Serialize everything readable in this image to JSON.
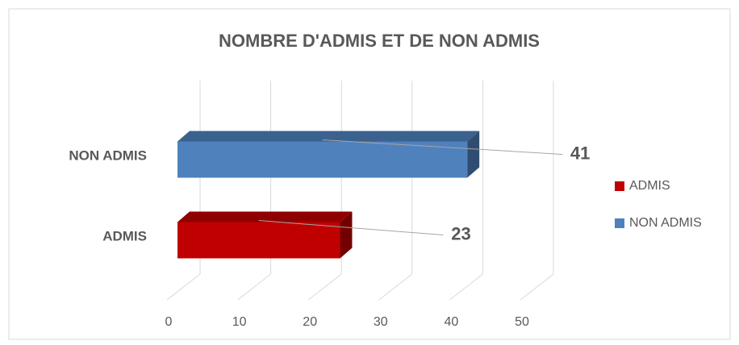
{
  "chart_data": {
    "type": "bar3d",
    "orientation": "horizontal",
    "title": "NOMBRE D'ADMIS ET DE NON ADMIS",
    "categories": [
      "ADMIS",
      "NON ADMIS"
    ],
    "values": [
      23,
      41
    ],
    "colors": [
      "#C00000",
      "#4F81BD"
    ],
    "xlim": [
      0,
      50
    ],
    "xticks": [
      0,
      10,
      20,
      30,
      40,
      50
    ],
    "grid": true,
    "legend": "right"
  }
}
